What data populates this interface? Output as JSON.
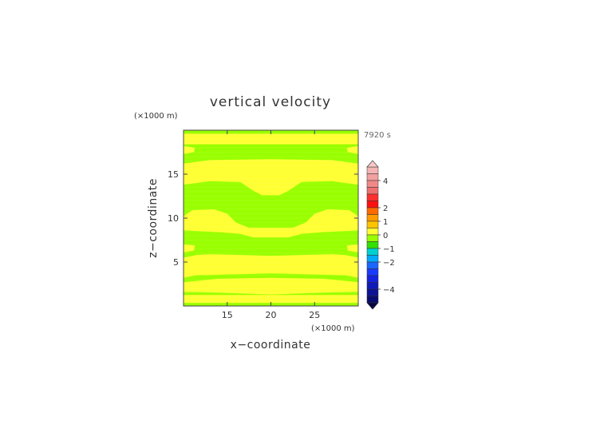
{
  "chart_data": {
    "type": "heatmap",
    "title": "vertical velocity",
    "xlabel": "x−coordinate",
    "ylabel": "z−coordinate",
    "x_unit": "(×1000 m)",
    "y_unit": "(×1000 m)",
    "time_label": "7920 s",
    "xlim": [
      10,
      30
    ],
    "ylim": [
      0,
      20
    ],
    "x_ticks": [
      15,
      20,
      25
    ],
    "y_ticks": [
      5,
      10,
      15
    ],
    "field": {
      "yellow_band_centers": [
        0.8,
        2.9,
        5.3,
        9.2,
        14.8,
        18.7
      ],
      "notes": "alternating weak positive (yellow) and near-zero (green) horizontal bands"
    },
    "colorbar": {
      "ticks": [
        4,
        2,
        1,
        0,
        -1,
        -2,
        -4
      ],
      "levels": [
        {
          "from": 4.5,
          "to": 5.0,
          "color": "#f4b4b4"
        },
        {
          "from": 4.0,
          "to": 4.5,
          "color": "#f2a0a0"
        },
        {
          "from": 3.5,
          "to": 4.0,
          "color": "#f08888"
        },
        {
          "from": 3.0,
          "to": 3.5,
          "color": "#ee7070"
        },
        {
          "from": 2.5,
          "to": 3.0,
          "color": "#ff3030"
        },
        {
          "from": 2.0,
          "to": 2.5,
          "color": "#ff1010"
        },
        {
          "from": 1.5,
          "to": 2.0,
          "color": "#ff6a00"
        },
        {
          "from": 1.0,
          "to": 1.5,
          "color": "#ff9a00"
        },
        {
          "from": 0.5,
          "to": 1.0,
          "color": "#ffc400"
        },
        {
          "from": 0.0,
          "to": 0.5,
          "color": "#ffff33"
        },
        {
          "from": -0.5,
          "to": 0.0,
          "color": "#99ff00"
        },
        {
          "from": -1.0,
          "to": -0.5,
          "color": "#33e000"
        },
        {
          "from": -1.5,
          "to": -1.0,
          "color": "#00d0d0"
        },
        {
          "from": -2.0,
          "to": -1.5,
          "color": "#00aaff"
        },
        {
          "from": -2.5,
          "to": -2.0,
          "color": "#1a66ff"
        },
        {
          "from": -3.0,
          "to": -2.5,
          "color": "#1a3aff"
        },
        {
          "from": -3.5,
          "to": -3.0,
          "color": "#1522e0"
        },
        {
          "from": -4.0,
          "to": -3.5,
          "color": "#101ab8"
        },
        {
          "from": -4.5,
          "to": -4.0,
          "color": "#0c1294"
        },
        {
          "from": -5.0,
          "to": -4.5,
          "color": "#080c70"
        }
      ],
      "upper_triangle_color": "#f8c8c8",
      "lower_triangle_color": "#050540"
    },
    "colors": {
      "positive_weak": "#ffff33",
      "near_zero": "#99ff00"
    }
  }
}
